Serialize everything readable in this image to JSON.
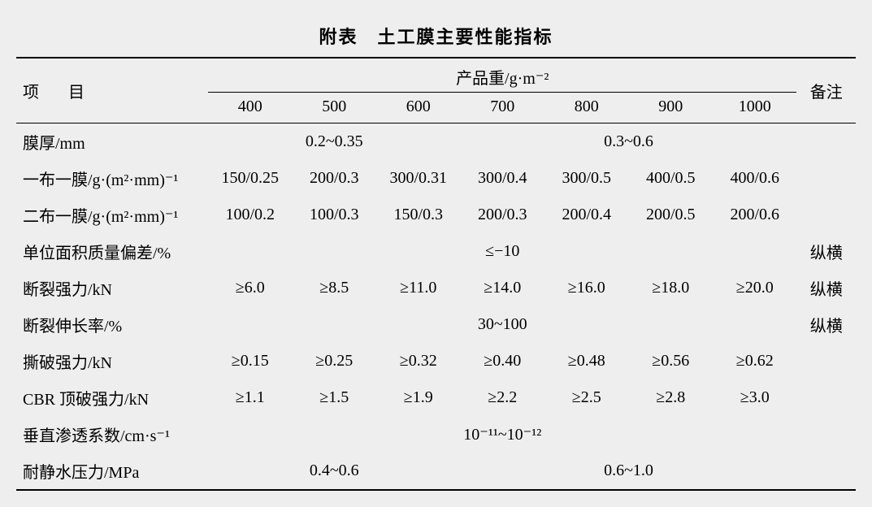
{
  "title": "附表　土工膜主要性能指标",
  "header": {
    "project": "项　目",
    "product_weight": "产品重/g·m⁻²",
    "remark": "备注"
  },
  "weight_cols": [
    "400",
    "500",
    "600",
    "700",
    "800",
    "900",
    "1000"
  ],
  "rows": [
    {
      "label": "膜厚/mm",
      "cells": [
        {
          "span": 3,
          "val": "0.2~0.35"
        },
        {
          "span": 4,
          "val": "0.3~0.6"
        }
      ],
      "remark": ""
    },
    {
      "label": "一布一膜/g·(m²·mm)⁻¹",
      "cells": [
        {
          "span": 1,
          "val": "150/0.25"
        },
        {
          "span": 1,
          "val": "200/0.3"
        },
        {
          "span": 1,
          "val": "300/0.31"
        },
        {
          "span": 1,
          "val": "300/0.4"
        },
        {
          "span": 1,
          "val": "300/0.5"
        },
        {
          "span": 1,
          "val": "400/0.5"
        },
        {
          "span": 1,
          "val": "400/0.6"
        }
      ],
      "remark": ""
    },
    {
      "label": "二布一膜/g·(m²·mm)⁻¹",
      "cells": [
        {
          "span": 1,
          "val": "100/0.2"
        },
        {
          "span": 1,
          "val": "100/0.3"
        },
        {
          "span": 1,
          "val": "150/0.3"
        },
        {
          "span": 1,
          "val": "200/0.3"
        },
        {
          "span": 1,
          "val": "200/0.4"
        },
        {
          "span": 1,
          "val": "200/0.5"
        },
        {
          "span": 1,
          "val": "200/0.6"
        }
      ],
      "remark": ""
    },
    {
      "label": "单位面积质量偏差/%",
      "cells": [
        {
          "span": 7,
          "val": "≤−10"
        }
      ],
      "remark": "纵横"
    },
    {
      "label": "断裂强力/kN",
      "cells": [
        {
          "span": 1,
          "val": "≥6.0"
        },
        {
          "span": 1,
          "val": "≥8.5"
        },
        {
          "span": 1,
          "val": "≥11.0"
        },
        {
          "span": 1,
          "val": "≥14.0"
        },
        {
          "span": 1,
          "val": "≥16.0"
        },
        {
          "span": 1,
          "val": "≥18.0"
        },
        {
          "span": 1,
          "val": "≥20.0"
        }
      ],
      "remark": "纵横"
    },
    {
      "label": "断裂伸长率/%",
      "cells": [
        {
          "span": 7,
          "val": "30~100"
        }
      ],
      "remark": "纵横"
    },
    {
      "label": "撕破强力/kN",
      "cells": [
        {
          "span": 1,
          "val": "≥0.15"
        },
        {
          "span": 1,
          "val": "≥0.25"
        },
        {
          "span": 1,
          "val": "≥0.32"
        },
        {
          "span": 1,
          "val": "≥0.40"
        },
        {
          "span": 1,
          "val": "≥0.48"
        },
        {
          "span": 1,
          "val": "≥0.56"
        },
        {
          "span": 1,
          "val": "≥0.62"
        }
      ],
      "remark": ""
    },
    {
      "label": "CBR 顶破强力/kN",
      "cells": [
        {
          "span": 1,
          "val": "≥1.1"
        },
        {
          "span": 1,
          "val": "≥1.5"
        },
        {
          "span": 1,
          "val": "≥1.9"
        },
        {
          "span": 1,
          "val": "≥2.2"
        },
        {
          "span": 1,
          "val": "≥2.5"
        },
        {
          "span": 1,
          "val": "≥2.8"
        },
        {
          "span": 1,
          "val": "≥3.0"
        }
      ],
      "remark": ""
    },
    {
      "label": "垂直渗透系数/cm·s⁻¹",
      "cells": [
        {
          "span": 7,
          "val": "10⁻¹¹~10⁻¹²"
        }
      ],
      "remark": ""
    },
    {
      "label": "耐静水压力/MPa",
      "cells": [
        {
          "span": 3,
          "val": "0.4~0.6"
        },
        {
          "span": 4,
          "val": "0.6~1.0"
        }
      ],
      "remark": ""
    }
  ],
  "col_widths": {
    "label_col": "228px",
    "data_col": "100px",
    "remark_col": "70px"
  }
}
